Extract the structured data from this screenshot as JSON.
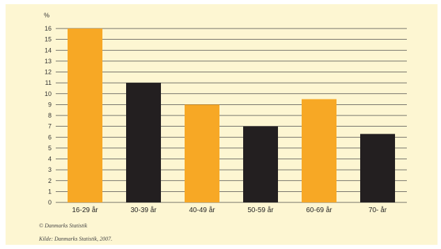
{
  "chart_data": {
    "type": "bar",
    "title": "",
    "xlabel": "",
    "ylabel": "%",
    "categories": [
      "16-29 år",
      "30-39 år",
      "40-49 år",
      "50-59 år",
      "60-69 år",
      "70- år"
    ],
    "values": [
      16,
      11,
      9,
      7,
      9.5,
      6.3
    ],
    "bar_colors": [
      "#f7a825",
      "#231f20",
      "#f7a825",
      "#231f20",
      "#f7a825",
      "#231f20"
    ],
    "yticks": [
      0,
      1,
      2,
      3,
      4,
      5,
      6,
      7,
      8,
      9,
      10,
      11,
      12,
      13,
      14,
      15,
      16
    ],
    "ylim": [
      0,
      16
    ],
    "grid": true,
    "legend": "none"
  },
  "footer": {
    "copyright": "© Danmarks Statistik",
    "source": "Kilde: Danmarks Statistik, 2007."
  },
  "colors": {
    "background": "#fdf6d2",
    "gridline": "#444444"
  }
}
